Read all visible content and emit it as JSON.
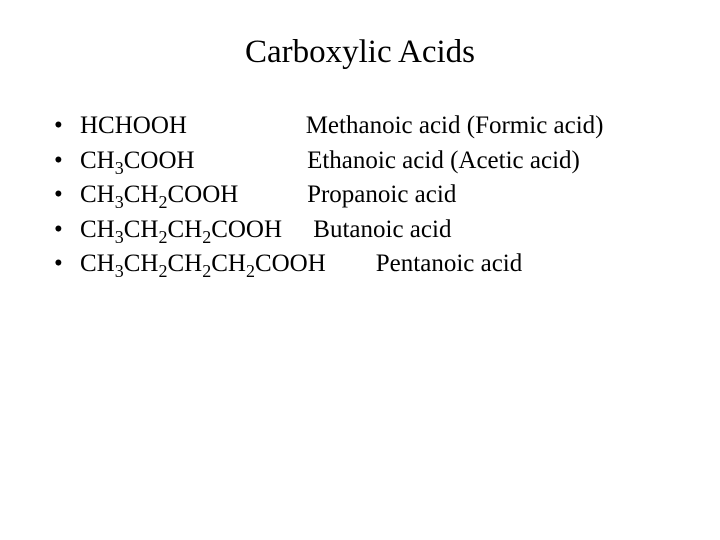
{
  "title": "Carboxylic Acids",
  "title_fontsize": 33,
  "body_fontsize": 25,
  "background_color": "#ffffff",
  "text_color": "#000000",
  "font_family": "Times New Roman",
  "bullet_char": "•",
  "items": [
    {
      "formula_parts": [
        "HCHOOH"
      ],
      "spacer": "                   ",
      "name": "Methanoic acid (Formic acid)"
    },
    {
      "formula_parts": [
        "CH",
        {
          "sub": "3"
        },
        "COOH"
      ],
      "spacer": "                  ",
      "name": "Ethanoic acid (Acetic acid)"
    },
    {
      "formula_parts": [
        "CH",
        {
          "sub": "3"
        },
        "CH",
        {
          "sub": "2"
        },
        "COOH"
      ],
      "spacer": "           ",
      "name": "Propanoic acid"
    },
    {
      "formula_parts": [
        "CH",
        {
          "sub": "3"
        },
        "CH",
        {
          "sub": "2"
        },
        "CH",
        {
          "sub": "2"
        },
        "COOH"
      ],
      "spacer": "     ",
      "name": "Butanoic acid"
    },
    {
      "formula_parts": [
        "CH",
        {
          "sub": "3"
        },
        "CH",
        {
          "sub": "2"
        },
        "CH",
        {
          "sub": "2"
        },
        "CH",
        {
          "sub": "2"
        },
        "COOH"
      ],
      "spacer": "        ",
      "name": "Pentanoic acid"
    }
  ]
}
